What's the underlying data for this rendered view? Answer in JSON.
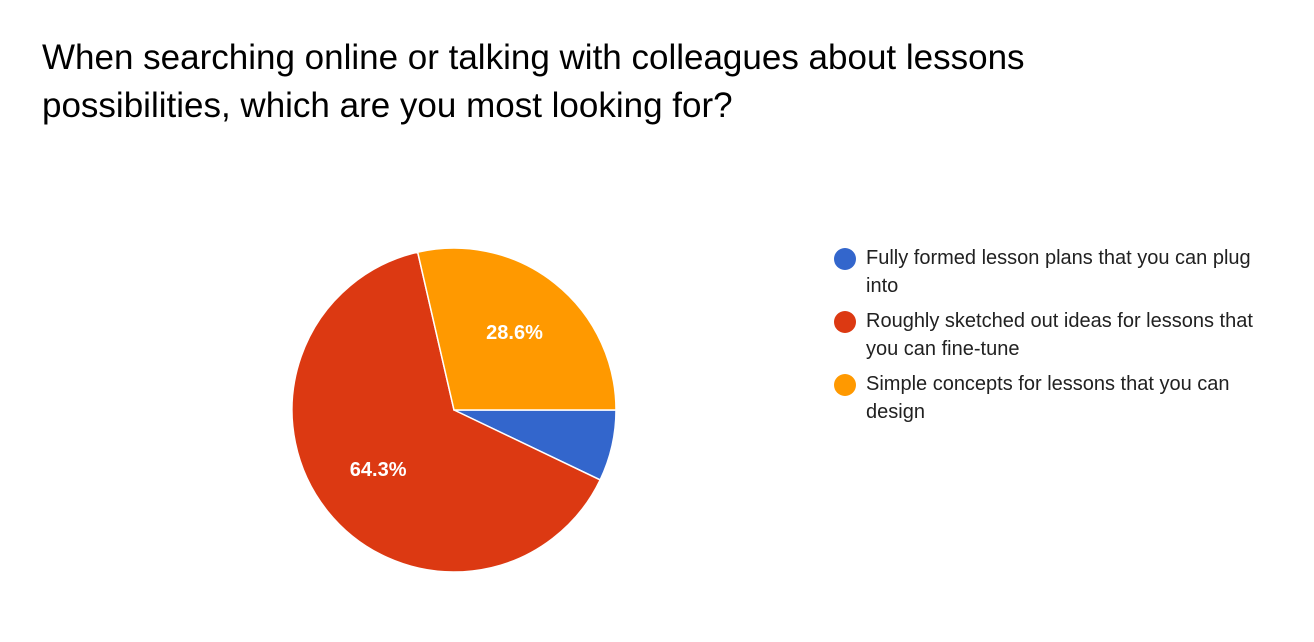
{
  "chart_data": {
    "type": "pie",
    "title": "When searching online or talking with colleagues about lessons possibilities, which are you most looking for?",
    "categories": [
      "Fully formed lesson plans that you can plug into",
      "Roughly sketched out ideas for lessons that you can fine-tune",
      "Simple concepts for lessons that you can design"
    ],
    "values": [
      7.1,
      64.3,
      28.6
    ],
    "data_labels": [
      "",
      "64.3%",
      "28.6%"
    ],
    "colors": [
      "#3366cc",
      "#dc3912",
      "#ff9900"
    ],
    "legend_position": "right"
  }
}
